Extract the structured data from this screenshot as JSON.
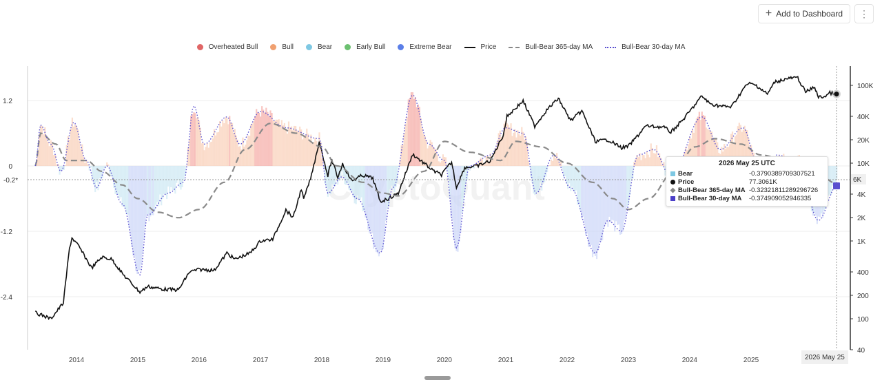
{
  "toolbar": {
    "add_label": "Add to Dashboard",
    "add_icon": "plus-icon",
    "more_icon": "kebab-menu-icon"
  },
  "legend": [
    {
      "label": "Overheated Bull",
      "kind": "dot",
      "color": "#e06666"
    },
    {
      "label": "Bull",
      "kind": "dot",
      "color": "#f0a070"
    },
    {
      "label": "Bear",
      "kind": "dot",
      "color": "#7ec8e3"
    },
    {
      "label": "Early Bull",
      "kind": "dot",
      "color": "#6cc070"
    },
    {
      "label": "Extreme Bear",
      "kind": "dot",
      "color": "#5b7fe8"
    },
    {
      "label": "Price",
      "kind": "solid",
      "color": "#111111"
    },
    {
      "label": "Bull-Bear 365-day MA",
      "kind": "dashed",
      "color": "#888888"
    },
    {
      "label": "Bull-Bear 30-day MA",
      "kind": "dotted",
      "color": "#5a4fcf"
    }
  ],
  "watermark": "CryptoQuant",
  "tooltip": {
    "title": "2026 May 25 UTC",
    "rows": [
      {
        "name": "Bear",
        "value": "-0.3790389709307521",
        "marker": "square",
        "color": "#7ec8e3"
      },
      {
        "name": "Price",
        "value": "77.3061K",
        "marker": "circle",
        "color": "#111111"
      },
      {
        "name": "Bull-Bear 365-day MA",
        "value": "-0.32321811289296726",
        "marker": "diamond",
        "color": "#888888"
      },
      {
        "name": "Bull-Bear 30-day MA",
        "value": "-0.374909052946335",
        "marker": "square",
        "color": "#4b3fc8"
      }
    ]
  },
  "crosshair": {
    "date_label": "2026 May 25",
    "left_value_label": "-0.2*",
    "right_value_label": "6K"
  },
  "chart_data": {
    "type": "line",
    "x_axis": {
      "ticks": [
        "2014",
        "2015",
        "2016",
        "2017",
        "2018",
        "2019",
        "2020",
        "2021",
        "2022",
        "2023",
        "2024",
        "2025"
      ]
    },
    "y_left": {
      "range": [
        -3.4,
        1.8
      ],
      "ticks": [
        1.2,
        0,
        -1.2,
        -2.4
      ],
      "tick_labels": [
        "1.2",
        "0",
        "-1.2",
        "-2.4"
      ]
    },
    "y_right": {
      "scale": "log",
      "ticks": [
        100000,
        40000,
        20000,
        10000,
        4000,
        2000,
        1000,
        400,
        200,
        100,
        40
      ],
      "tick_labels": [
        "100K",
        "40K",
        "20K",
        "10K",
        "4K",
        "2K",
        "1K",
        "400",
        "200",
        "100",
        "40"
      ]
    },
    "series": [
      {
        "name": "Price",
        "axis": "right",
        "points": [
          [
            "2013-05-01",
            120
          ],
          [
            "2013-08-01",
            100
          ],
          [
            "2013-10-15",
            160
          ],
          [
            "2013-11-20",
            800
          ],
          [
            "2013-12-05",
            1100
          ],
          [
            "2014-01-15",
            850
          ],
          [
            "2014-04-01",
            450
          ],
          [
            "2014-06-01",
            620
          ],
          [
            "2014-08-01",
            580
          ],
          [
            "2014-10-01",
            380
          ],
          [
            "2015-01-14",
            220
          ],
          [
            "2015-03-01",
            260
          ],
          [
            "2015-06-01",
            240
          ],
          [
            "2015-09-01",
            235
          ],
          [
            "2015-11-05",
            400
          ],
          [
            "2016-01-01",
            430
          ],
          [
            "2016-04-01",
            420
          ],
          [
            "2016-06-15",
            700
          ],
          [
            "2016-08-01",
            580
          ],
          [
            "2016-11-01",
            700
          ],
          [
            "2017-01-01",
            1000
          ],
          [
            "2017-03-15",
            1050
          ],
          [
            "2017-06-01",
            2500
          ],
          [
            "2017-07-15",
            2000
          ],
          [
            "2017-09-01",
            4700
          ],
          [
            "2017-09-15",
            3400
          ],
          [
            "2017-11-01",
            7000
          ],
          [
            "2017-12-17",
            19000
          ],
          [
            "2018-02-06",
            6900
          ],
          [
            "2018-03-01",
            11000
          ],
          [
            "2018-04-06",
            6600
          ],
          [
            "2018-05-05",
            9800
          ],
          [
            "2018-06-28",
            5900
          ],
          [
            "2018-09-01",
            7000
          ],
          [
            "2018-11-01",
            6400
          ],
          [
            "2018-12-15",
            3200
          ],
          [
            "2019-02-01",
            3500
          ],
          [
            "2019-04-01",
            4100
          ],
          [
            "2019-06-26",
            13000
          ],
          [
            "2019-09-01",
            10000
          ],
          [
            "2019-10-25",
            8000
          ],
          [
            "2019-12-15",
            7100
          ],
          [
            "2020-02-13",
            10300
          ],
          [
            "2020-03-13",
            4900
          ],
          [
            "2020-05-01",
            8800
          ],
          [
            "2020-07-15",
            9200
          ],
          [
            "2020-10-01",
            10700
          ],
          [
            "2020-12-17",
            23000
          ],
          [
            "2021-01-08",
            40000
          ],
          [
            "2021-04-14",
            63000
          ],
          [
            "2021-06-22",
            30000
          ],
          [
            "2021-09-01",
            48000
          ],
          [
            "2021-11-10",
            68000
          ],
          [
            "2022-01-22",
            35000
          ],
          [
            "2022-03-30",
            47000
          ],
          [
            "2022-06-18",
            19000
          ],
          [
            "2022-09-01",
            20000
          ],
          [
            "2022-11-21",
            15800
          ],
          [
            "2023-01-01",
            16500
          ],
          [
            "2023-03-01",
            23000
          ],
          [
            "2023-04-14",
            30000
          ],
          [
            "2023-08-01",
            29000
          ],
          [
            "2023-09-11",
            25000
          ],
          [
            "2023-12-01",
            38000
          ],
          [
            "2024-03-14",
            73000
          ],
          [
            "2024-05-01",
            58000
          ],
          [
            "2024-07-05",
            54000
          ],
          [
            "2024-09-06",
            53000
          ],
          [
            "2024-11-15",
            90000
          ],
          [
            "2024-12-17",
            106000
          ],
          [
            "2025-02-01",
            100000
          ],
          [
            "2025-04-08",
            77000
          ],
          [
            "2025-05-22",
            111000
          ],
          [
            "2025-08-14",
            123000
          ],
          [
            "2025-10-06",
            125000
          ],
          [
            "2025-11-21",
            82000
          ],
          [
            "2026-01-15",
            95000
          ],
          [
            "2026-02-06",
            70000
          ],
          [
            "2026-03-15",
            72000
          ],
          [
            "2026-04-15",
            80000
          ],
          [
            "2026-05-25",
            77306.1
          ]
        ]
      },
      {
        "name": "Bull-Bear 365-day MA",
        "axis": "left",
        "points": [
          [
            "2013-05-01",
            0
          ],
          [
            "2013-06-01",
            0.6
          ],
          [
            "2013-09-01",
            0.4
          ],
          [
            "2013-11-01",
            0.1
          ],
          [
            "2014-03-01",
            0.1
          ],
          [
            "2014-06-01",
            -0.1
          ],
          [
            "2014-10-01",
            -0.35
          ],
          [
            "2015-01-01",
            -0.6
          ],
          [
            "2015-05-01",
            -0.85
          ],
          [
            "2015-09-01",
            -0.95
          ],
          [
            "2016-01-01",
            -0.8
          ],
          [
            "2016-06-01",
            -0.3
          ],
          [
            "2016-10-01",
            0.3
          ],
          [
            "2017-03-01",
            0.78
          ],
          [
            "2017-08-01",
            0.6
          ],
          [
            "2018-01-01",
            0.35
          ],
          [
            "2018-04-01",
            0.0
          ],
          [
            "2018-09-01",
            -0.3
          ],
          [
            "2019-01-01",
            -0.5
          ],
          [
            "2019-04-01",
            -0.55
          ],
          [
            "2019-09-01",
            -0.1
          ],
          [
            "2020-01-01",
            0.45
          ],
          [
            "2020-06-01",
            0.25
          ],
          [
            "2020-12-01",
            0.1
          ],
          [
            "2021-03-01",
            0.45
          ],
          [
            "2021-08-01",
            0.35
          ],
          [
            "2022-01-01",
            0.05
          ],
          [
            "2022-06-01",
            -0.3
          ],
          [
            "2022-10-01",
            -0.6
          ],
          [
            "2023-01-01",
            -0.8
          ],
          [
            "2023-05-01",
            -0.6
          ],
          [
            "2023-10-01",
            -0.1
          ],
          [
            "2024-02-01",
            0.35
          ],
          [
            "2024-06-01",
            0.5
          ],
          [
            "2024-11-01",
            0.4
          ],
          [
            "2025-03-01",
            0.2
          ],
          [
            "2025-09-01",
            0.05
          ],
          [
            "2026-02-01",
            -0.15
          ],
          [
            "2026-05-25",
            -0.3232
          ]
        ]
      },
      {
        "name": "Bull-Bear 30-day MA",
        "axis": "left",
        "points": [
          [
            "2013-05-01",
            0
          ],
          [
            "2013-06-01",
            0.75
          ],
          [
            "2013-08-01",
            0.4
          ],
          [
            "2013-10-01",
            -0.1
          ],
          [
            "2013-12-15",
            0.8
          ],
          [
            "2014-03-01",
            0.1
          ],
          [
            "2014-05-01",
            -0.4
          ],
          [
            "2014-07-01",
            0.0
          ],
          [
            "2014-10-01",
            -0.7
          ],
          [
            "2015-01-14",
            -2.0
          ],
          [
            "2015-03-01",
            -0.9
          ],
          [
            "2015-07-01",
            -0.5
          ],
          [
            "2015-10-01",
            -0.3
          ],
          [
            "2015-12-01",
            1.1
          ],
          [
            "2016-02-01",
            0.4
          ],
          [
            "2016-06-15",
            0.9
          ],
          [
            "2016-09-01",
            0.4
          ],
          [
            "2017-01-01",
            1.0
          ],
          [
            "2017-06-01",
            0.7
          ],
          [
            "2017-12-17",
            0.5
          ],
          [
            "2018-02-06",
            -0.5
          ],
          [
            "2018-05-01",
            -0.2
          ],
          [
            "2018-08-01",
            -0.6
          ],
          [
            "2018-12-15",
            -1.6
          ],
          [
            "2019-03-01",
            -0.4
          ],
          [
            "2019-06-26",
            1.3
          ],
          [
            "2019-10-01",
            0.4
          ],
          [
            "2020-01-01",
            0.1
          ],
          [
            "2020-03-13",
            -1.5
          ],
          [
            "2020-06-01",
            0.0
          ],
          [
            "2020-10-01",
            0.2
          ],
          [
            "2020-12-30",
            0.7
          ],
          [
            "2021-04-14",
            0.6
          ],
          [
            "2021-07-01",
            -0.5
          ],
          [
            "2021-10-15",
            0.2
          ],
          [
            "2022-01-22",
            -0.4
          ],
          [
            "2022-06-18",
            -1.6
          ],
          [
            "2022-09-01",
            -1.0
          ],
          [
            "2022-11-21",
            -1.2
          ],
          [
            "2023-03-01",
            0.2
          ],
          [
            "2023-06-01",
            0.3
          ],
          [
            "2023-09-11",
            -0.2
          ],
          [
            "2024-03-14",
            0.9
          ],
          [
            "2024-07-01",
            0.3
          ],
          [
            "2024-11-15",
            0.7
          ],
          [
            "2025-02-01",
            0.1
          ],
          [
            "2025-04-08",
            -0.5
          ],
          [
            "2025-06-01",
            0.2
          ],
          [
            "2025-10-06",
            0.1
          ],
          [
            "2026-02-06",
            -1.0
          ],
          [
            "2026-05-25",
            -0.3749
          ]
        ]
      }
    ]
  }
}
